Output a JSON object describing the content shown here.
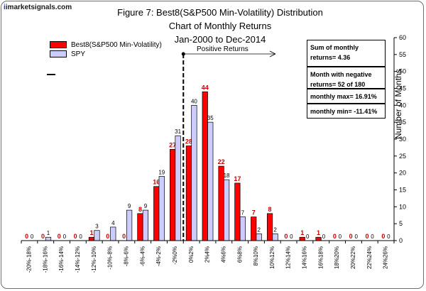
{
  "logo": {
    "text": "imarketsignals.com"
  },
  "title": {
    "line1": "Figure 7:  Best8(S&P500 Min-Volatility)  Distribution Chart of Monthly Returns",
    "line2": "Jan-2000 to Dec-2014"
  },
  "legend": {
    "series1": "Best8(S&P500 Min-Volatility)",
    "series2": "SPY"
  },
  "annotation": {
    "positive_returns": "Positive Returns"
  },
  "stats": {
    "sum_label": "Sum of monthly returns= 4.36",
    "negative_label": "Month with negative returns=  52 of 180",
    "max_label": "monthly max= 16.91%",
    "min_label": "monthly min= -11.41%"
  },
  "colors": {
    "best8": "#ff0000",
    "spy": "#ccccff",
    "border": "#000000"
  },
  "chart_data": {
    "type": "bar",
    "categories": [
      "-20%-18%",
      "-18%-16%",
      "-16%-14%",
      "-14%-12%",
      "-12%-10%",
      "-10%-8%",
      "-8%-6%",
      "-6%-4%",
      "-4%-2%",
      "-2%0%",
      "0%2%",
      "2%4%",
      "4%6%",
      "6%8%",
      "8%10%",
      "10%12%",
      "12%14%",
      "14%16%",
      "16%18%",
      "18%20%",
      "20%22%",
      "22%24%",
      "24%26%"
    ],
    "series": [
      {
        "name": "Best8(S&P500 Min-Volatility)",
        "values": [
          0,
          0,
          0,
          0,
          1,
          0,
          0,
          8,
          16,
          27,
          28,
          44,
          22,
          17,
          7,
          8,
          0,
          1,
          1,
          0,
          0,
          0,
          0
        ]
      },
      {
        "name": "SPY",
        "values": [
          0,
          1,
          0,
          0,
          3,
          4,
          9,
          9,
          19,
          31,
          40,
          35,
          18,
          7,
          2,
          2,
          0,
          0,
          0,
          0,
          0,
          0,
          0
        ]
      }
    ],
    "ylabel": "Number of Months",
    "yticks": [
      0,
      5,
      10,
      15,
      20,
      25,
      30,
      35,
      40,
      45,
      50,
      55,
      60
    ],
    "ylim": [
      0,
      60
    ],
    "grid": false,
    "legend_position": "top-left"
  }
}
